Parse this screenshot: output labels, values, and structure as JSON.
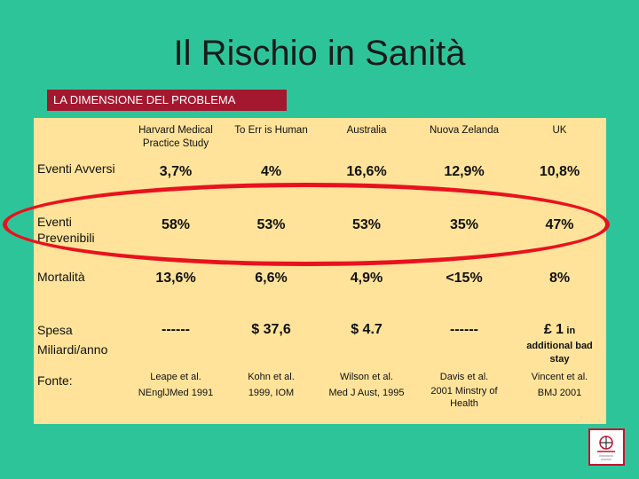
{
  "slide": {
    "title": "Il Rischio in Sanità",
    "subtitle": "LA DIMENSIONE DEL PROBLEMA"
  },
  "table": {
    "columns": [
      "Harvard Medical Practice Study",
      "To Err is Human",
      "Australia",
      "Nuova Zelanda",
      "UK"
    ],
    "rows": [
      {
        "label": "Eventi Avversi",
        "values": [
          "3,7%",
          "4%",
          "16,6%",
          "12,9%",
          "10,8%"
        ]
      },
      {
        "label": "Eventi Prevenibili",
        "values": [
          "58%",
          "53%",
          "53%",
          "35%",
          "47%"
        ]
      },
      {
        "label": "Mortalità",
        "values": [
          "13,6%",
          "6,6%",
          "4,9%",
          "<15%",
          "8%"
        ]
      },
      {
        "label": "Spesa Miliardi/anno",
        "values": [
          "------",
          "$ 37,6",
          "$ 4.7",
          "------",
          "£ 1"
        ]
      }
    ],
    "uk_spesa_in": "in",
    "uk_spesa_note": "additional bad stay",
    "source": {
      "label": "Fonte:",
      "values": [
        [
          "Leape et al.",
          "NEnglJMed 1991"
        ],
        [
          "Kohn et al.",
          "1999, IOM"
        ],
        [
          "Wilson et al.",
          "Med J Aust, 1995"
        ],
        [
          "Davis et al.",
          "2001 Minstry of Health"
        ],
        [
          "Vincent et al.",
          "BMJ 2001"
        ]
      ]
    }
  },
  "highlight_color": "#e8121e"
}
